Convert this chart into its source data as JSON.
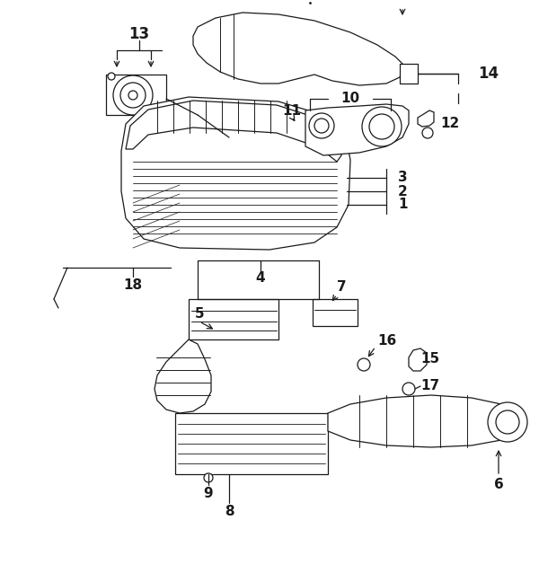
{
  "bg_color": "#ffffff",
  "line_color": "#1a1a1a",
  "fig_width": 6.0,
  "fig_height": 6.28,
  "dpi": 100,
  "label_fontsize": 11,
  "lw": 0.9
}
